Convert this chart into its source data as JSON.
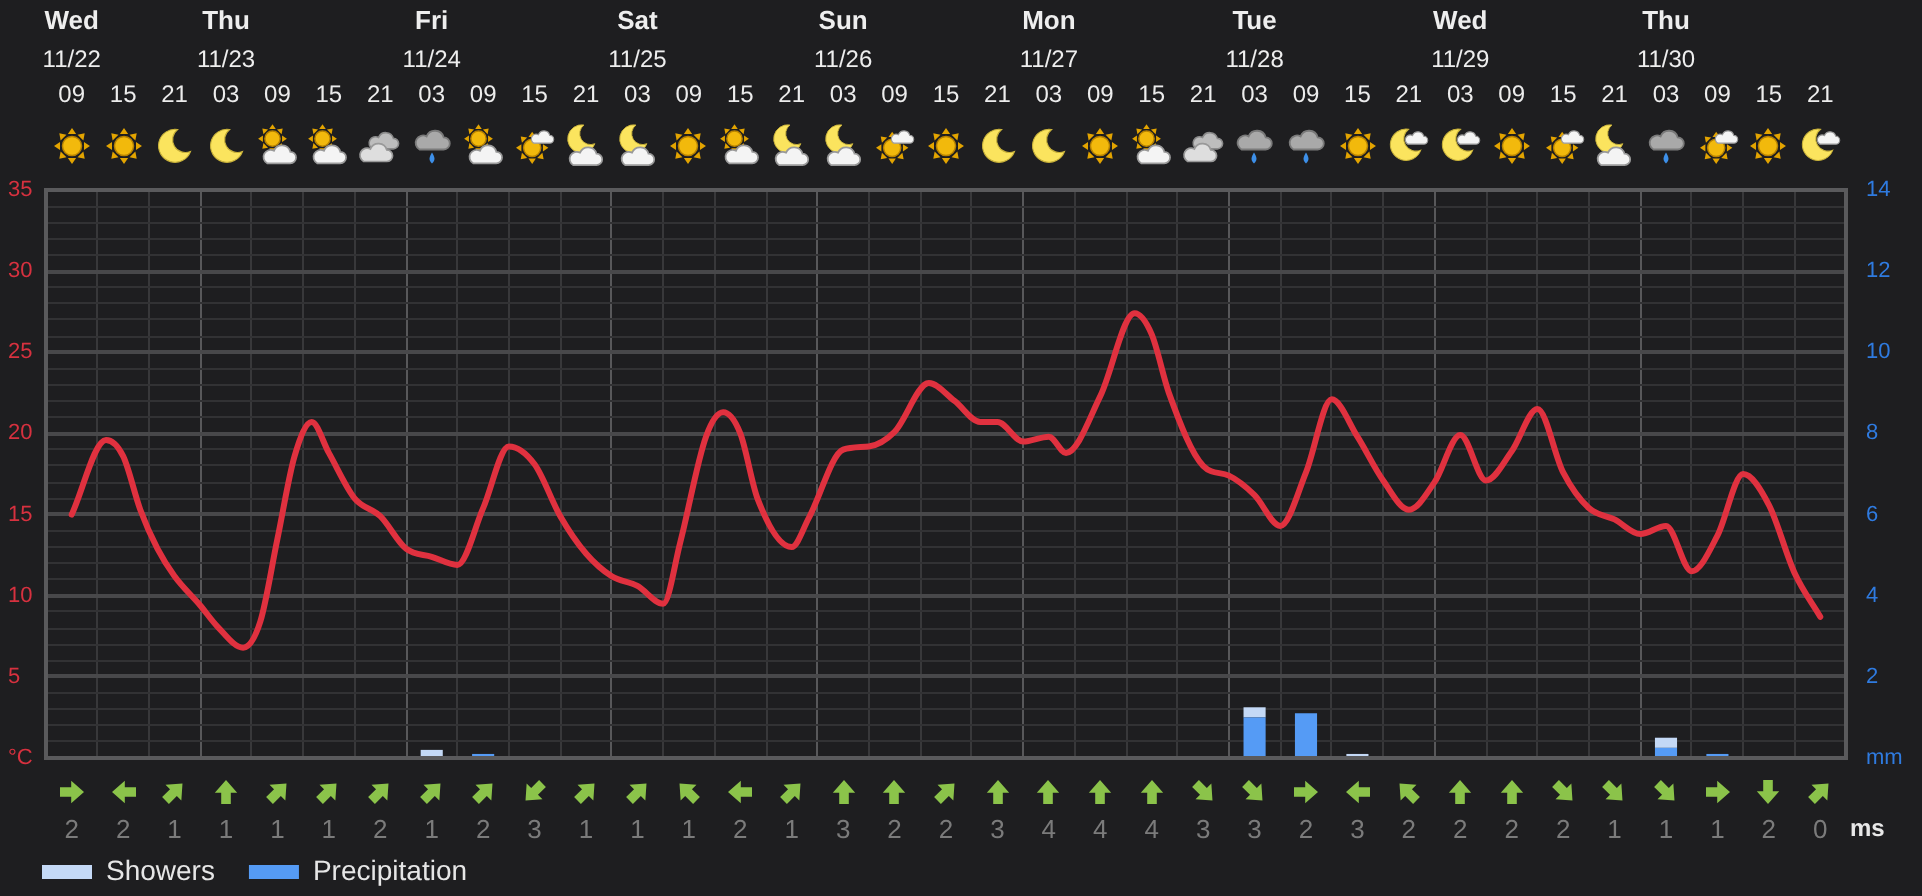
{
  "chart_data": [
    {
      "type": "line",
      "series": [
        {
          "type": "line",
          "color": "#e0313f",
          "x": [
            "--11-22T09:00",
            "--11-22T13:00",
            "--11-22T15:00",
            "--11-22T17:00",
            "--11-22T19:00",
            "--11-22T21:00",
            "--11-23T00:00",
            "--11-23T02:00",
            "--11-23T05:00",
            "--11-23T07:00",
            "--11-23T09:00",
            "--11-23T11:00",
            "--11-23T13:00",
            "--11-23T15:00",
            "--11-23T18:00",
            "--11-23T21:00",
            "--11-24T00:00",
            "--11-24T03:00",
            "--11-24T06:00",
            "--11-24T09:00",
            "--11-24T12:00",
            "--11-24T15:00",
            "--11-24T18:00",
            "--11-24T21:00",
            "--11-25T00:00",
            "--11-25T03:00",
            "--11-25T06:00",
            "--11-25T08:00",
            "--11-25T11:00",
            "--11-25T13:00",
            "--11-25T15:00",
            "--11-25T17:00",
            "--11-25T21:00",
            "--11-25T23:00",
            "--11-26T03:00",
            "--11-26T06:00",
            "--11-26T09:00",
            "--11-26T13:00",
            "--11-26T16:00",
            "--11-26T19:00",
            "--11-26T21:00",
            "--11-27T00:00",
            "--11-27T03:00",
            "--11-27T05:00",
            "--11-27T09:00",
            "--11-27T13:00",
            "--11-27T15:00",
            "--11-27T17:00",
            "--11-27T21:00",
            "--11-28T00:00",
            "--11-28T03:00",
            "--11-28T06:00",
            "--11-28T09:00",
            "--11-28T12:00",
            "--11-28T15:00",
            "--11-28T18:00",
            "--11-28T21:00",
            "--11-29T00:00",
            "--11-29T03:00",
            "--11-29T06:00",
            "--11-29T09:00",
            "--11-29T12:00",
            "--11-29T15:00",
            "--11-29T18:00",
            "--11-29T21:00",
            "--11-30T00:00",
            "--11-30T03:00",
            "--11-30T06:00",
            "--11-30T09:00",
            "--11-30T12:00",
            "--11-30T15:00",
            "--11-30T18:00",
            "--11-30T21:00"
          ],
          "values": [
            15.0,
            19.6,
            18.6,
            15.3,
            12.9,
            11.2,
            9.4,
            8.1,
            6.8,
            8.4,
            13.5,
            18.6,
            20.7,
            18.8,
            16.0,
            14.9,
            12.9,
            12.4,
            11.9,
            15.4,
            19.2,
            18.1,
            14.9,
            12.6,
            11.2,
            10.6,
            9.5,
            13.3,
            19.8,
            21.3,
            20.0,
            16.0,
            13.0,
            14.8,
            19.0,
            19.2,
            20.1,
            23.1,
            22.0,
            20.7,
            20.7,
            19.5,
            19.8,
            18.8,
            22.3,
            27.4,
            26.1,
            22.5,
            18.0,
            17.4,
            16.2,
            14.3,
            17.6,
            22.1,
            19.8,
            17.1,
            15.3,
            17.0,
            19.9,
            17.1,
            18.9,
            21.5,
            17.6,
            15.4,
            14.7,
            13.8,
            14.3,
            11.5,
            13.7,
            17.5,
            15.6,
            11.4,
            8.7
          ]
        },
        {
          "type": "bar",
          "name": "Precipitation",
          "color": "#559bf5",
          "axis": "y2",
          "x": [
            null,
            "--11-24T09:00",
            "--11-28T03:00",
            "--11-28T09:00",
            null,
            "--11-30T03:00",
            "--11-30T09:00"
          ],
          "values": [
            null,
            0.1,
            1.0,
            1.1,
            null,
            0.25,
            0.1
          ]
        },
        {
          "type": "bar",
          "name": "Showers",
          "color": "#c4d9f6",
          "axis": "y2",
          "x": [
            "--11-24T03:00",
            null,
            "--11-28T03:00",
            null,
            "--11-28T15:00",
            "--11-30T03:00",
            null
          ],
          "values": [
            0.2,
            null,
            0.25,
            null,
            0.1,
            0.25,
            null
          ]
        }
      ],
      "stacked": true,
      "grid": true,
      "legend": "bottom left",
      "xlim": [
        "--11-22T06:00",
        "--12-01T00:00"
      ],
      "xticks": [
        {
          "value": "--11-22T06:00",
          "label": null
        },
        {
          "value": "--11-22T09:00",
          "label": "09"
        },
        {
          "value": "--11-22T12:00",
          "label": null
        },
        {
          "value": "--11-22T15:00",
          "label": "15"
        },
        {
          "value": "--11-22T18:00",
          "label": null
        },
        {
          "value": "--11-22T21:00",
          "label": "21"
        },
        {
          "value": "--11-23T00:00",
          "label": null
        },
        {
          "value": "--11-23T03:00",
          "label": "03"
        },
        {
          "value": "--11-23T06:00",
          "label": null
        },
        {
          "value": "--11-23T09:00",
          "label": "09"
        },
        {
          "value": "--11-23T12:00",
          "label": null
        },
        {
          "value": "--11-23T15:00",
          "label": "15"
        },
        {
          "value": "--11-23T18:00",
          "label": null
        },
        {
          "value": "--11-23T21:00",
          "label": "21"
        },
        {
          "value": "--11-24T00:00",
          "label": null
        },
        {
          "value": "--11-24T03:00",
          "label": "03"
        },
        {
          "value": "--11-24T06:00",
          "label": null
        },
        {
          "value": "--11-24T09:00",
          "label": "09"
        },
        {
          "value": "--11-24T12:00",
          "label": null
        },
        {
          "value": "--11-24T15:00",
          "label": "15"
        },
        {
          "value": "--11-24T18:00",
          "label": null
        },
        {
          "value": "--11-24T21:00",
          "label": "21"
        },
        {
          "value": "--11-25T00:00",
          "label": null
        },
        {
          "value": "--11-25T03:00",
          "label": "03"
        },
        {
          "value": "--11-25T06:00",
          "label": null
        },
        {
          "value": "--11-25T09:00",
          "label": "09"
        },
        {
          "value": "--11-25T12:00",
          "label": null
        },
        {
          "value": "--11-25T15:00",
          "label": "15"
        },
        {
          "value": "--11-25T18:00",
          "label": null
        },
        {
          "value": "--11-25T21:00",
          "label": "21"
        },
        {
          "value": "--11-26T00:00",
          "label": null
        },
        {
          "value": "--11-26T03:00",
          "label": "03"
        },
        {
          "value": "--11-26T06:00",
          "label": null
        },
        {
          "value": "--11-26T09:00",
          "label": "09"
        },
        {
          "value": "--11-26T12:00",
          "label": null
        },
        {
          "value": "--11-26T15:00",
          "label": "15"
        },
        {
          "value": "--11-26T18:00",
          "label": null
        },
        {
          "value": "--11-26T21:00",
          "label": "21"
        },
        {
          "value": "--11-27T00:00",
          "label": null
        },
        {
          "value": "--11-27T03:00",
          "label": "03"
        },
        {
          "value": "--11-27T06:00",
          "label": null
        },
        {
          "value": "--11-27T09:00",
          "label": "09"
        },
        {
          "value": "--11-27T12:00",
          "label": null
        },
        {
          "value": "--11-27T15:00",
          "label": "15"
        },
        {
          "value": "--11-27T18:00",
          "label": null
        },
        {
          "value": "--11-27T21:00",
          "label": "21"
        },
        {
          "value": "--11-28T00:00",
          "label": null
        },
        {
          "value": "--11-28T03:00",
          "label": "03"
        },
        {
          "value": "--11-28T06:00",
          "label": null
        },
        {
          "value": "--11-28T09:00",
          "label": "09"
        },
        {
          "value": "--11-28T12:00",
          "label": null
        },
        {
          "value": "--11-28T15:00",
          "label": "15"
        },
        {
          "value": "--11-28T18:00",
          "label": null
        },
        {
          "value": "--11-28T21:00",
          "label": "21"
        },
        {
          "value": "--11-29T00:00",
          "label": null
        },
        {
          "value": "--11-29T03:00",
          "label": "03"
        },
        {
          "value": "--11-29T06:00",
          "label": null
        },
        {
          "value": "--11-29T09:00",
          "label": "09"
        },
        {
          "value": "--11-29T12:00",
          "label": null
        },
        {
          "value": "--11-29T15:00",
          "label": "15"
        },
        {
          "value": "--11-29T18:00",
          "label": null
        },
        {
          "value": "--11-29T21:00",
          "label": "21"
        },
        {
          "value": "--11-30T00:00",
          "label": null
        },
        {
          "value": "--11-30T03:00",
          "label": "03"
        },
        {
          "value": "--11-30T06:00",
          "label": null
        },
        {
          "value": "--11-30T09:00",
          "label": "09"
        },
        {
          "value": "--11-30T12:00",
          "label": null
        },
        {
          "value": "--11-30T15:00",
          "label": "15"
        },
        {
          "value": "--11-30T18:00",
          "label": null
        },
        {
          "value": "--11-30T21:00",
          "label": "21"
        },
        {
          "value": "--12-01T00:00",
          "label": null
        }
      ],
      "x2lim": [
        "--11-22T06:00",
        "--12-01T00:00"
      ],
      "x2ticks": [
        {
          "value": "--11-22T09:00",
          "label": "Wed\n11/22"
        },
        {
          "value": "--11-23T03:00",
          "label": "Thu\n11/23"
        },
        {
          "value": "--11-24T03:00",
          "label": "Fri\n11/24"
        },
        {
          "value": "--11-25T03:00",
          "label": "Sat\n11/25"
        },
        {
          "value": "--11-26T03:00",
          "label": "Sun\n11/26"
        },
        {
          "value": "--11-27T03:00",
          "label": "Mon\n11/27"
        },
        {
          "value": "--11-28T03:00",
          "label": "Tue\n11/28"
        },
        {
          "value": "--11-29T03:00",
          "label": "Wed\n11/29"
        },
        {
          "value": "--11-30T03:00",
          "label": "Thu\n11/30"
        }
      ],
      "ylim": [
        0,
        35
      ],
      "yticks": [
        {
          "value": 0,
          "label": "°C"
        },
        {
          "value": 1,
          "label": null
        },
        {
          "value": 2,
          "label": null
        },
        {
          "value": 3,
          "label": null
        },
        {
          "value": 4,
          "label": null
        },
        5,
        {
          "value": 6,
          "label": null
        },
        {
          "value": 7,
          "label": null
        },
        {
          "value": 8,
          "label": null
        },
        {
          "value": 9,
          "label": null
        },
        10,
        {
          "value": 11,
          "label": null
        },
        {
          "value": 12,
          "label": null
        },
        {
          "value": 13,
          "label": null
        },
        {
          "value": 14,
          "label": null
        },
        15,
        {
          "value": 16,
          "label": null
        },
        {
          "value": 17,
          "label": null
        },
        {
          "value": 18,
          "label": null
        },
        {
          "value": 19,
          "label": null
        },
        20,
        {
          "value": 21,
          "label": null
        },
        {
          "value": 22,
          "label": null
        },
        {
          "value": 23,
          "label": null
        },
        {
          "value": 24,
          "label": null
        },
        25,
        {
          "value": 26,
          "label": null
        },
        {
          "value": 27,
          "label": null
        },
        {
          "value": 28,
          "label": null
        },
        {
          "value": 29,
          "label": null
        },
        30,
        {
          "value": 31,
          "label": null
        },
        {
          "value": 32,
          "label": null
        },
        {
          "value": 33,
          "label": null
        },
        {
          "value": 34,
          "label": null
        },
        35
      ],
      "y2lim": [
        0,
        14
      ],
      "y2ticks": [
        {
          "value": 0,
          "label": "mm"
        },
        2,
        4,
        6,
        8,
        10,
        12,
        14
      ]
    },
    {
      "type": "other",
      "categories": [
        null,
        null,
        null,
        null,
        null,
        null,
        null,
        null,
        null,
        null,
        null,
        null,
        null,
        null,
        null,
        null,
        null,
        null,
        null,
        null,
        null,
        null,
        null,
        null,
        null,
        null,
        null,
        null,
        null,
        null,
        null,
        null,
        null,
        null,
        null
      ],
      "values": [
        2,
        2,
        1,
        1,
        1,
        1,
        2,
        1,
        2,
        3,
        1,
        1,
        1,
        2,
        1,
        3,
        2,
        2,
        3,
        4,
        4,
        4,
        3,
        3,
        2,
        3,
        2,
        2,
        2,
        2,
        1,
        1,
        1,
        2,
        0
      ],
      "data_labels": true,
      "ylabel": "ms"
    }
  ]
}
